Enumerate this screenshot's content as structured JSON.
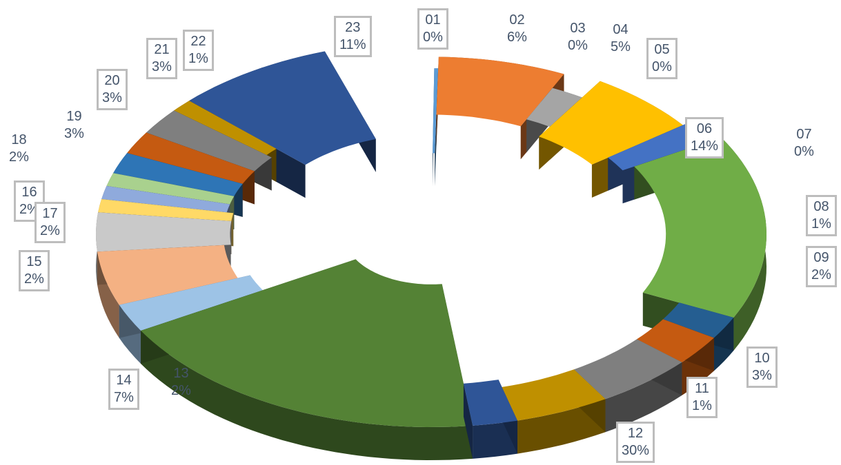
{
  "chart_data": {
    "type": "pie",
    "variant": "3d-exploded",
    "title": "",
    "data_labels": [
      "category",
      "percent"
    ],
    "slices": [
      {
        "category": "01",
        "percent": 0,
        "color": "#5b9bd5"
      },
      {
        "category": "02",
        "percent": 6,
        "color": "#ed7d31"
      },
      {
        "category": "03",
        "percent": 0,
        "color": "#a5a5a5"
      },
      {
        "category": "04",
        "percent": 5,
        "color": "#ffc000"
      },
      {
        "category": "05",
        "percent": 0,
        "color": "#4472c4"
      },
      {
        "category": "06",
        "percent": 14,
        "color": "#70ad47"
      },
      {
        "category": "07",
        "percent": 0,
        "color": "#255e91"
      },
      {
        "category": "08",
        "percent": 1,
        "color": "#c55a11"
      },
      {
        "category": "09",
        "percent": 2,
        "color": "#7f7f7f"
      },
      {
        "category": "10",
        "percent": 3,
        "color": "#bf9000"
      },
      {
        "category": "11",
        "percent": 1,
        "color": "#2f5597"
      },
      {
        "category": "12",
        "percent": 30,
        "color": "#548235"
      },
      {
        "category": "13",
        "percent": 2,
        "color": "#9dc3e6"
      },
      {
        "category": "14",
        "percent": 7,
        "color": "#f4b183"
      },
      {
        "category": "15",
        "percent": 2,
        "color": "#c9c9c9"
      },
      {
        "category": "16",
        "percent": 2,
        "color": "#ffd966"
      },
      {
        "category": "17",
        "percent": 2,
        "color": "#8faadc"
      },
      {
        "category": "18",
        "percent": 2,
        "color": "#a9d18e"
      },
      {
        "category": "19",
        "percent": 3,
        "color": "#2e75b6"
      },
      {
        "category": "20",
        "percent": 3,
        "color": "#c55a11"
      },
      {
        "category": "21",
        "percent": 3,
        "color": "#7f7f7f"
      },
      {
        "category": "22",
        "percent": 1,
        "color": "#bf9000"
      },
      {
        "category": "23",
        "percent": 11,
        "color": "#2f5597"
      }
    ]
  }
}
